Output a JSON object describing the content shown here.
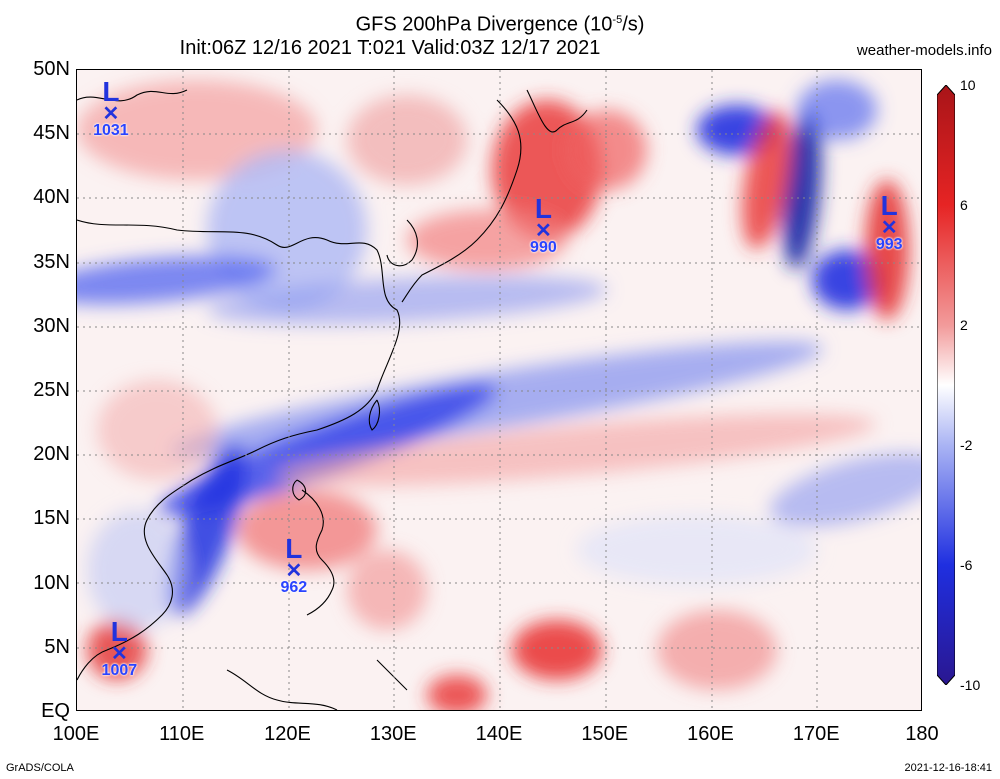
{
  "header": {
    "title_line1": "GFS 200hPa Divergence (10",
    "title_exp": "-5",
    "title_line1_end": "/s)",
    "title_line2": "Init:06Z 12/16 2021  T:021  Valid:03Z 12/17 2021",
    "source": "weather-models.info"
  },
  "map": {
    "lat_labels": [
      "50N",
      "45N",
      "40N",
      "35N",
      "30N",
      "25N",
      "20N",
      "15N",
      "10N",
      "5N",
      "EQ"
    ],
    "lon_labels": [
      "100E",
      "110E",
      "120E",
      "130E",
      "140E",
      "150E",
      "160E",
      "170E",
      "180"
    ],
    "lon_range": [
      100,
      180
    ],
    "lat_range": [
      0,
      50
    ],
    "grid": "dotted"
  },
  "colorbar": {
    "labels": [
      "10",
      "6",
      "2",
      "-2",
      "-6",
      "-10"
    ],
    "colors": [
      "#b4121a",
      "#e83030",
      "#f58a8a",
      "#f7d0d0",
      "#ffffff",
      "#ccd0f7",
      "#7f8cf0",
      "#1f2fe0",
      "#2a1790"
    ]
  },
  "lows": [
    {
      "pressure": "1031",
      "lon": 103.3,
      "lat": 46.2
    },
    {
      "pressure": "990",
      "lon": 144.2,
      "lat": 37.1
    },
    {
      "pressure": "993",
      "lon": 176.9,
      "lat": 37.3
    },
    {
      "pressure": "962",
      "lon": 120.6,
      "lat": 10.6
    },
    {
      "pressure": "1007",
      "lon": 104.1,
      "lat": 4.1
    }
  ],
  "low_symbol": {
    "letter": "L",
    "mark": "✕"
  },
  "footer": {
    "left": "GrADS/COLA",
    "right": "2021-12-16-18:41"
  }
}
